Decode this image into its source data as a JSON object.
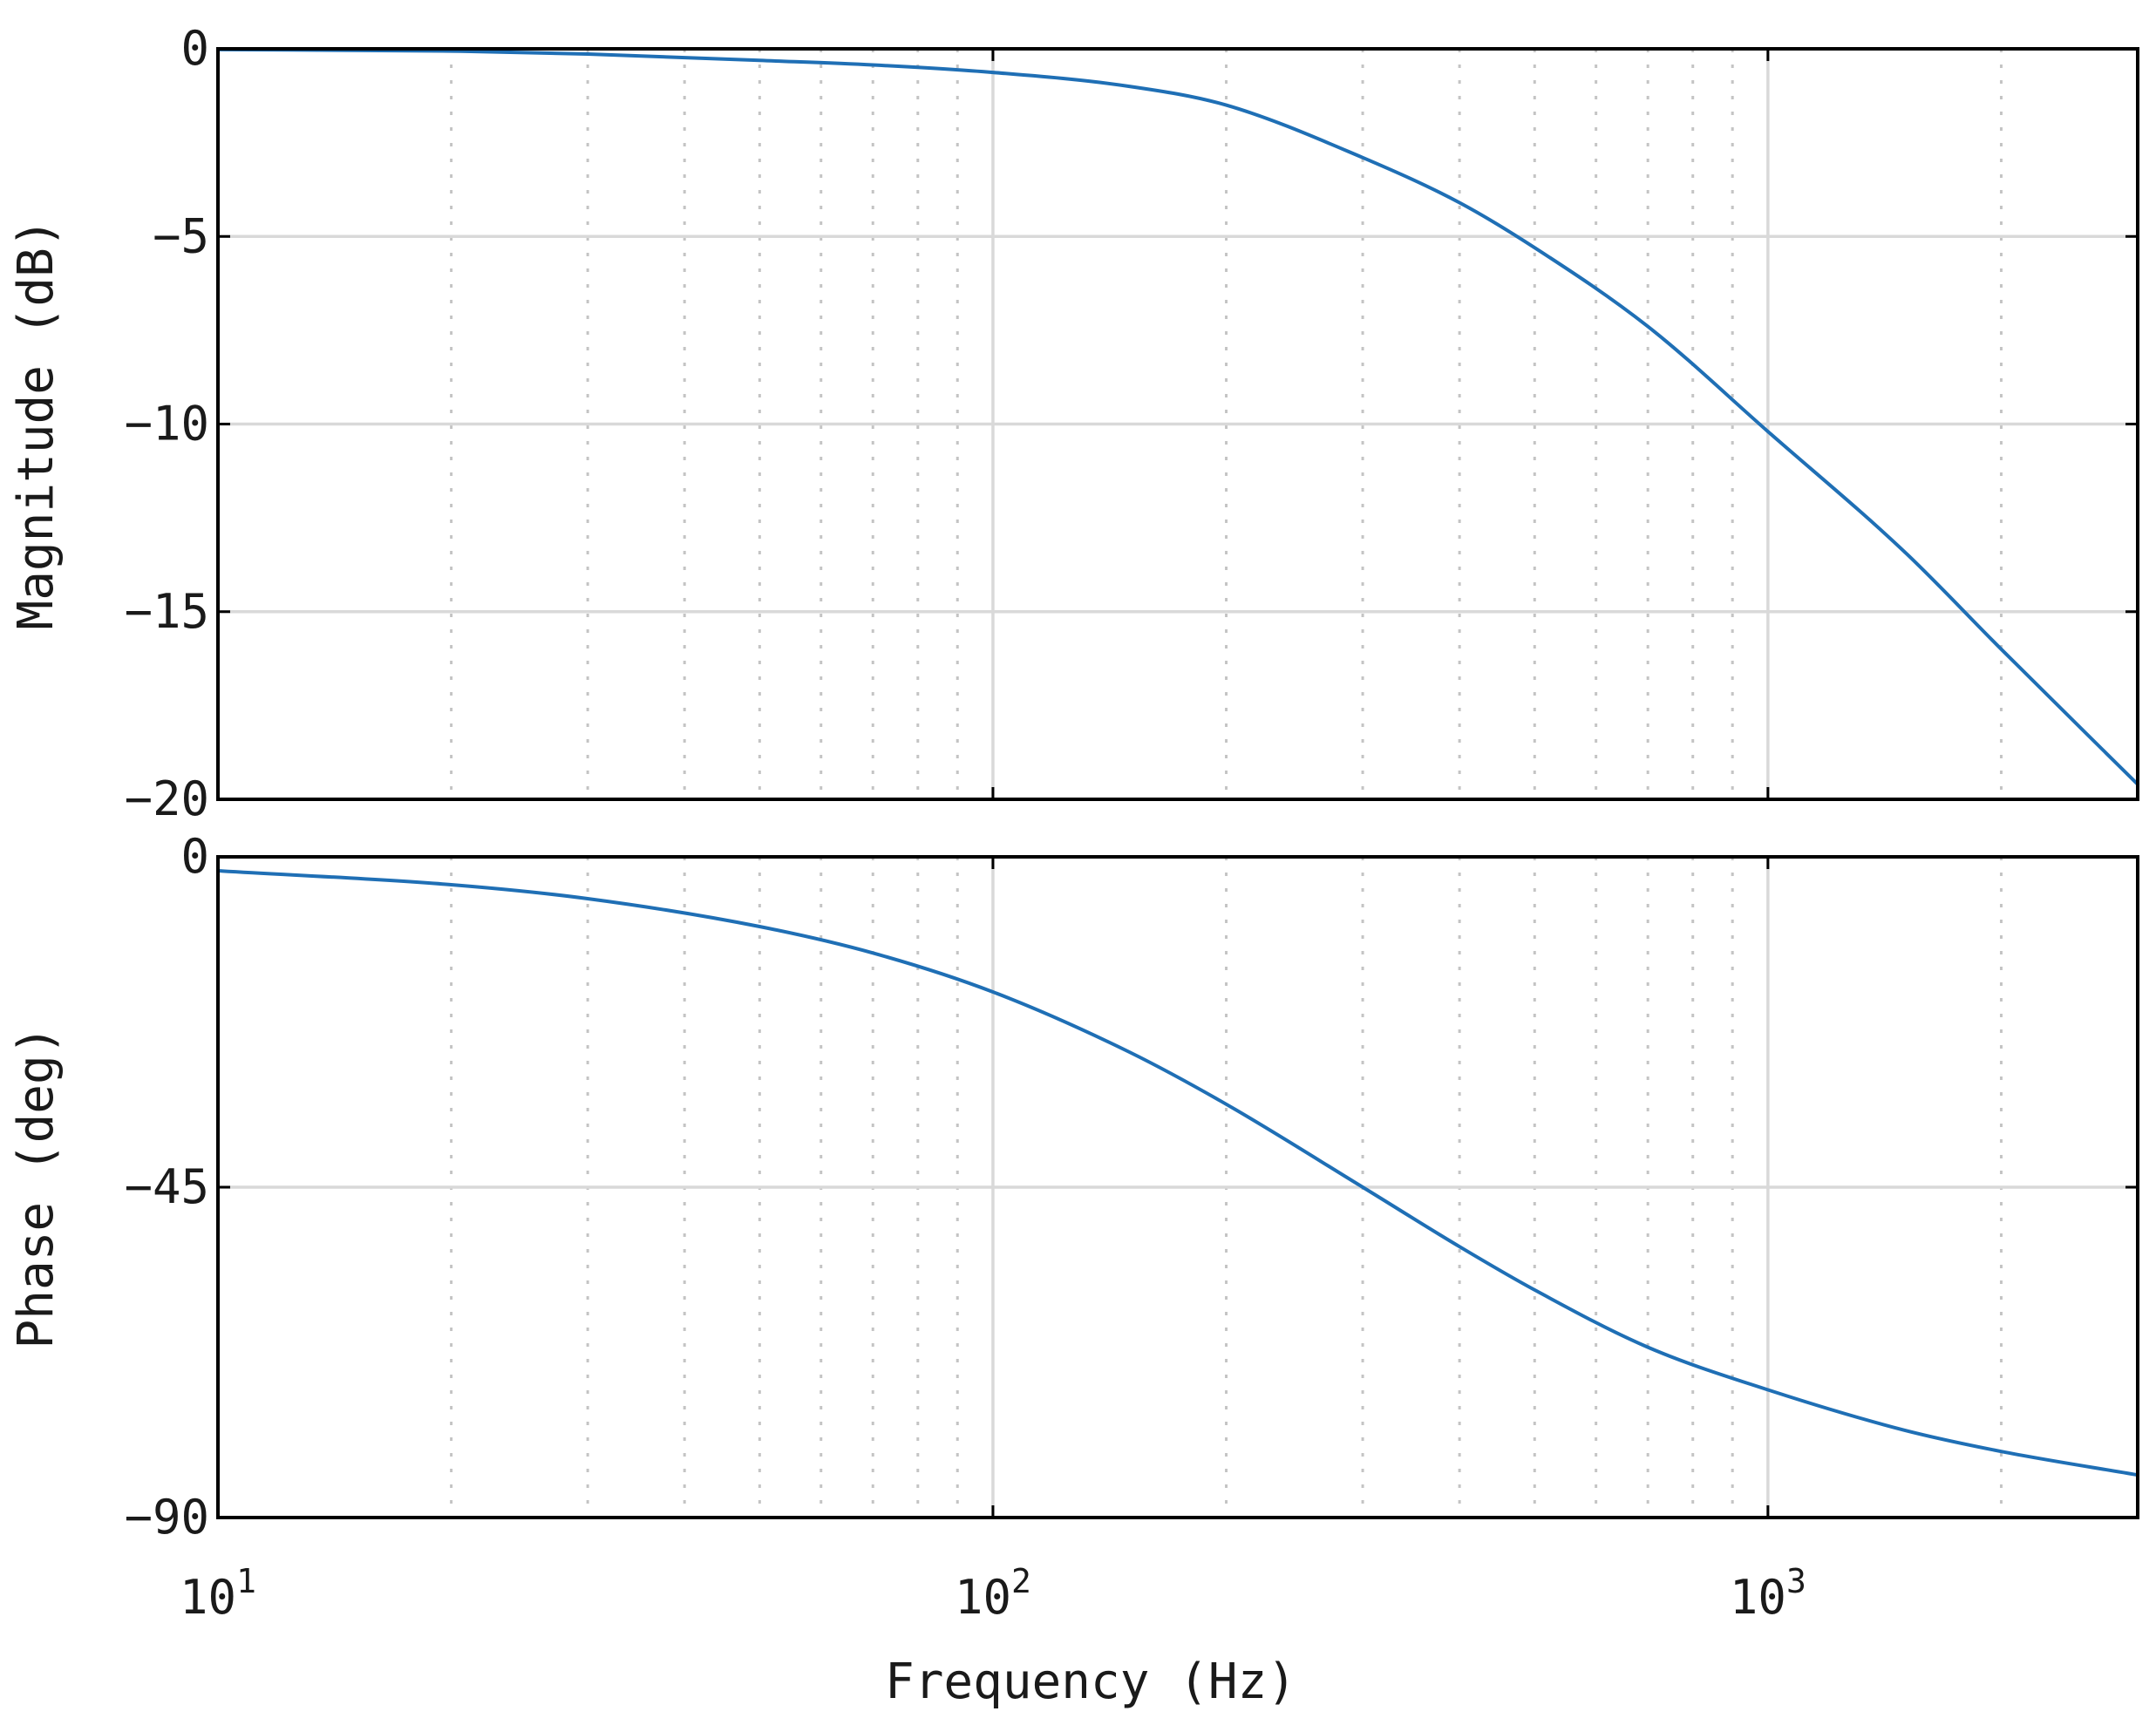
{
  "chart_data": [
    {
      "type": "line",
      "ylabel": "Magnitude (dB)",
      "xlabel": "",
      "xscale": "log",
      "xlim": [
        10,
        3000
      ],
      "ylim": [
        -20,
        0
      ],
      "yticks": [
        0,
        -5,
        -10,
        -15,
        -20
      ],
      "ytick_labels": [
        "0",
        "−5",
        "−10",
        "−15",
        "−20"
      ],
      "xtick_labels": [],
      "grid": true,
      "series": [
        {
          "color": "#1f6fb5",
          "x": [
            10,
            20,
            30,
            50,
            70,
            100,
            150,
            200,
            300,
            400,
            500,
            700,
            1000,
            1500,
            2000,
            3000
          ],
          "y": [
            -0.02,
            -0.06,
            -0.14,
            -0.31,
            -0.43,
            -0.63,
            -1.0,
            -1.5,
            -2.9,
            -4.1,
            -5.3,
            -7.4,
            -10.2,
            -13.4,
            -16.0,
            -19.6
          ]
        }
      ]
    },
    {
      "type": "line",
      "ylabel": "Phase (deg)",
      "xlabel": "Frequency (Hz)",
      "xscale": "log",
      "xlim": [
        10,
        3000
      ],
      "ylim": [
        -90,
        0
      ],
      "yticks": [
        0,
        -45,
        -90
      ],
      "ytick_labels": [
        "0",
        "−45",
        "−90"
      ],
      "xticks": [
        10,
        100,
        1000
      ],
      "xtick_labels": [
        {
          "base": "10",
          "exp": "1"
        },
        {
          "base": "10",
          "exp": "2"
        },
        {
          "base": "10",
          "exp": "3"
        }
      ],
      "grid": true,
      "series": [
        {
          "color": "#1f6fb5",
          "x": [
            10,
            20,
            30,
            50,
            70,
            100,
            150,
            200,
            300,
            400,
            500,
            700,
            1000,
            1500,
            2000,
            3000
          ],
          "y": [
            -1.9,
            -3.8,
            -5.7,
            -9.5,
            -13.1,
            -18.4,
            -26.6,
            -33.7,
            -45.0,
            -53.1,
            -59.0,
            -66.8,
            -72.6,
            -78.1,
            -81.0,
            -84.2
          ]
        }
      ]
    }
  ]
}
